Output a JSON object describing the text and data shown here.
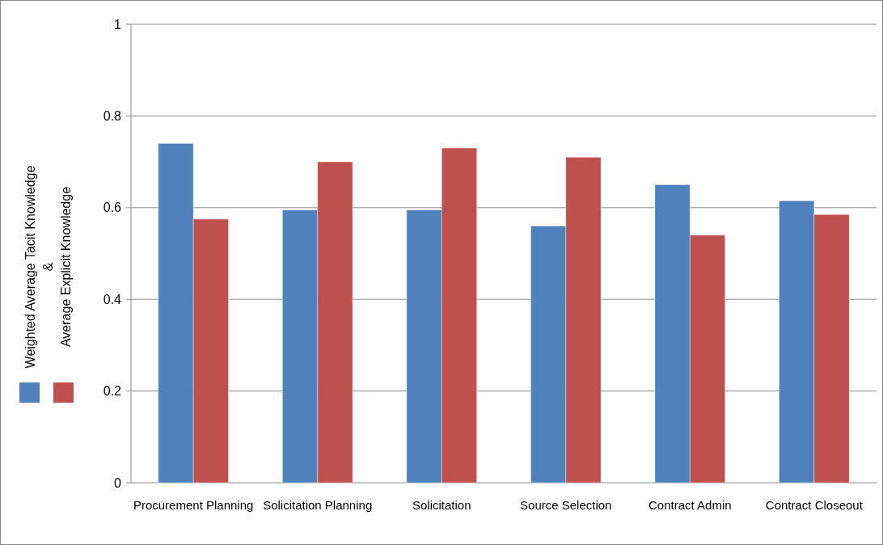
{
  "chart_data": {
    "type": "bar",
    "categories": [
      "Procurement Planning",
      "Solicitation Planning",
      "Solicitation",
      "Source Selection",
      "Contract Admin",
      "Contract Closeout"
    ],
    "series": [
      {
        "color": "#4f81bd",
        "values": [
          0.74,
          0.595,
          0.595,
          0.56,
          0.65,
          0.615
        ]
      },
      {
        "color": "#c0504d",
        "values": [
          0.575,
          0.7,
          0.73,
          0.71,
          0.54,
          0.585
        ]
      }
    ],
    "ylabel": "Weighted Average Tacit Knowledge\n&\nAverage Explicit Knowledge",
    "ylim": [
      0,
      1
    ],
    "yticks": [
      0,
      0.2,
      0.4,
      0.6,
      0.8,
      1
    ],
    "grid": "y"
  }
}
